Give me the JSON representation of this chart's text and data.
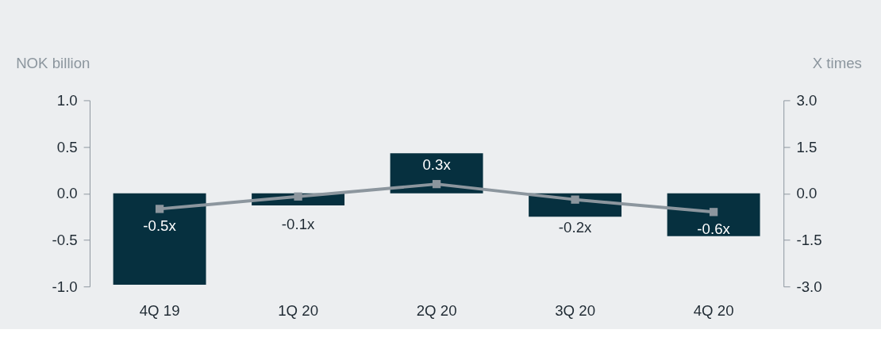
{
  "chart_data": {
    "type": "bar",
    "ylabel": "NOK billion",
    "y2label": "X times",
    "categories": [
      "4Q 19",
      "1Q 20",
      "2Q 20",
      "3Q 20",
      "4Q 20"
    ],
    "series": [
      {
        "color": "#06303f",
        "values": [
          -0.98,
          -0.13,
          0.43,
          -0.25,
          -0.46
        ]
      },
      {
        "type": "line",
        "axis": "y2",
        "color": "#8c969e",
        "marker": "square",
        "values": [
          -0.5,
          -0.1,
          0.3,
          -0.2,
          -0.6
        ],
        "value_labels": [
          "-0.5x",
          "-0.1x",
          "0.3x",
          "-0.2x",
          "-0.6x"
        ]
      }
    ],
    "ylim": [
      -1.0,
      1.0
    ],
    "yticks": [
      {
        "value": 1.0,
        "label": "1.0"
      },
      {
        "value": 0.5,
        "label": "0.5"
      },
      {
        "value": 0.0,
        "label": "0.0"
      },
      {
        "value": -0.5,
        "label": "-0.5"
      },
      {
        "value": -1.0,
        "label": "-1.0"
      }
    ],
    "y2lim": [
      -3.0,
      3.0
    ],
    "y2ticks": [
      {
        "value": 3.0,
        "label": "3.0"
      },
      {
        "value": 1.5,
        "label": "1.5"
      },
      {
        "value": 0.0,
        "label": "0.0"
      },
      {
        "value": -1.5,
        "label": "-1.5"
      },
      {
        "value": -3.0,
        "label": "-3.0"
      }
    ],
    "grid": false
  }
}
